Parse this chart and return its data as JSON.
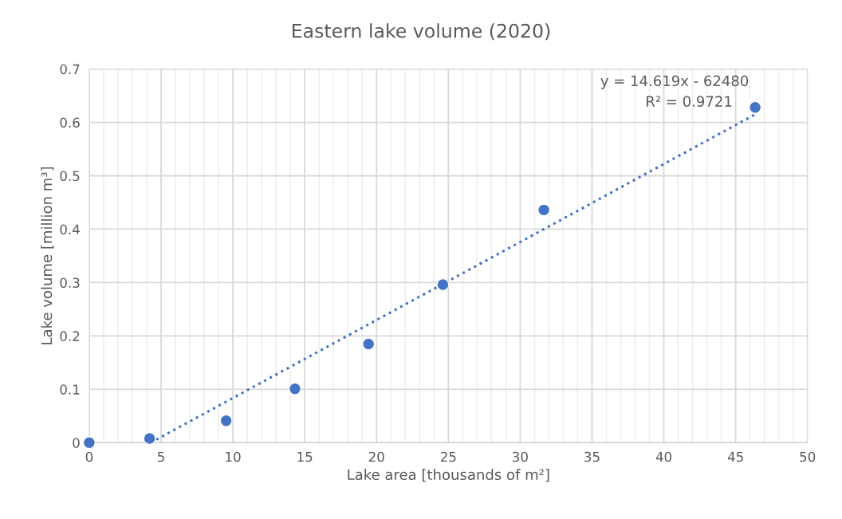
{
  "chart_data": {
    "type": "scatter",
    "title": "Eastern lake volume (2020)",
    "xlabel": "Lake area [thousands of m²]",
    "ylabel": "Lake volume [million m³]",
    "x": [
      0,
      4.2,
      9.53,
      14.32,
      19.44,
      24.62,
      31.65,
      46.36
    ],
    "series": [
      {
        "color": "#4472c4",
        "values": [
          0,
          0.008,
          0.041,
          0.101,
          0.185,
          0.296,
          0.436,
          0.628
        ],
        "marker": "circle"
      },
      {
        "type": "line",
        "color": "#4472c4",
        "x": [
          4.27,
          46.36
        ],
        "values": [
          0,
          0.615
        ],
        "line_style": "dotted",
        "marker": "none"
      }
    ],
    "annotations": [
      "y = 14.619x - 62480",
      "R² = 0.9721"
    ],
    "xlim": [
      0,
      50
    ],
    "xticks": [
      0,
      5,
      10,
      15,
      20,
      25,
      30,
      35,
      40,
      45,
      50
    ],
    "ylim": [
      0,
      0.7
    ],
    "yticks": [
      0,
      0.1,
      0.2,
      0.3,
      0.4,
      0.5,
      0.6,
      0.7
    ],
    "grid": true,
    "legend": false
  }
}
